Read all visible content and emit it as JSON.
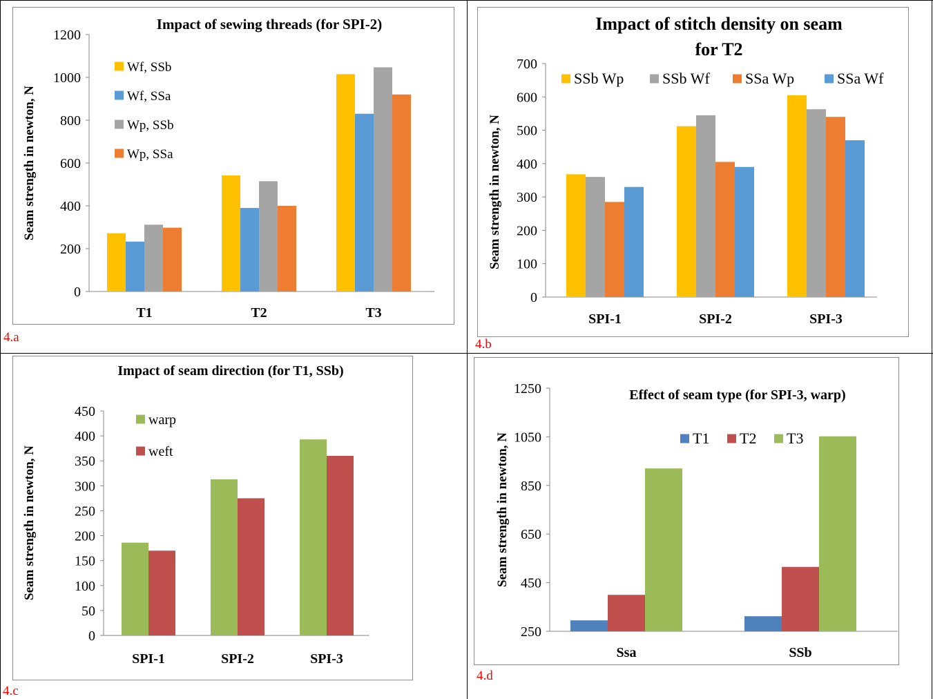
{
  "panels": [
    {
      "label": "4.a",
      "colors": [
        "#FFC000",
        "#5B9BD5",
        "#A5A5A5",
        "#ED7D31"
      ],
      "chart_data": {
        "type": "bar",
        "title": "Impact of sewing threads (for SPI-2)",
        "xlabel": "",
        "ylabel": "Seam strength in newton, N",
        "categories": [
          "T1",
          "T2",
          "T3"
        ],
        "series": [
          {
            "name": "Wf, SSb",
            "values": [
              272,
              542,
              1015
            ]
          },
          {
            "name": "Wf, SSa",
            "values": [
              233,
              390,
              830
            ]
          },
          {
            "name": "Wp, SSb",
            "values": [
              312,
              515,
              1047
            ]
          },
          {
            "name": "Wp, SSa",
            "values": [
              298,
              400,
              920
            ]
          }
        ],
        "ylim": [
          0,
          1200
        ],
        "yticks": [
          "0",
          "200",
          "400",
          "600",
          "800",
          "1000",
          "1200"
        ],
        "legend": "left"
      }
    },
    {
      "label": "4.b",
      "colors": [
        "#FFC000",
        "#A5A5A5",
        "#ED7D31",
        "#5B9BD5"
      ],
      "chart_data": {
        "type": "bar",
        "title": "Impact of stitch density on seam",
        "title2": "for T2",
        "xlabel": "",
        "ylabel": "Seam strength in newton, N",
        "categories": [
          "SPI-1",
          "SPI-2",
          "SPI-3"
        ],
        "series": [
          {
            "name": "SSb Wp",
            "values": [
              368,
              512,
              605
            ]
          },
          {
            "name": "SSb Wf",
            "values": [
              360,
              545,
              563
            ]
          },
          {
            "name": "SSa Wp",
            "values": [
              285,
              405,
              540
            ]
          },
          {
            "name": "SSa Wf",
            "values": [
              330,
              390,
              470
            ]
          }
        ],
        "ylim": [
          0,
          700
        ],
        "yticks": [
          "0",
          "100",
          "200",
          "300",
          "400",
          "500",
          "600",
          "700"
        ],
        "legend": "top"
      }
    },
    {
      "label": "4.c",
      "colors": [
        "#9BBB59",
        "#C0504D"
      ],
      "chart_data": {
        "type": "bar",
        "title": "Impact of seam direction  (for T1, SSb)",
        "xlabel": "",
        "ylabel": "Seam strength in newton, N",
        "categories": [
          "SPI-1",
          "SPI-2",
          "SPI-3"
        ],
        "series": [
          {
            "name": "warp",
            "values": [
              186,
              313,
              393
            ]
          },
          {
            "name": "weft",
            "values": [
              170,
              275,
              360
            ]
          }
        ],
        "ylim": [
          0,
          450
        ],
        "yticks": [
          "0",
          "50",
          "100",
          "150",
          "200",
          "250",
          "300",
          "350",
          "400",
          "450"
        ],
        "legend": "top-left"
      }
    },
    {
      "label": "4.d",
      "colors": [
        "#4F81BD",
        "#C0504D",
        "#9BBB59"
      ],
      "chart_data": {
        "type": "bar",
        "title": "Effect of seam type  (for SPI-3, warp)",
        "xlabel": "",
        "ylabel": "Seam strength in newton, N",
        "categories": [
          "Ssa",
          "SSb"
        ],
        "series": [
          {
            "name": "T1",
            "values": [
              295,
              312
            ]
          },
          {
            "name": "T2",
            "values": [
              400,
              515
            ]
          },
          {
            "name": "T3",
            "values": [
              920,
              1052
            ]
          }
        ],
        "ylim": [
          250,
          1250
        ],
        "yticks": [
          "250",
          "450",
          "650",
          "850",
          "1050",
          "1250"
        ],
        "legend": "top"
      }
    }
  ]
}
